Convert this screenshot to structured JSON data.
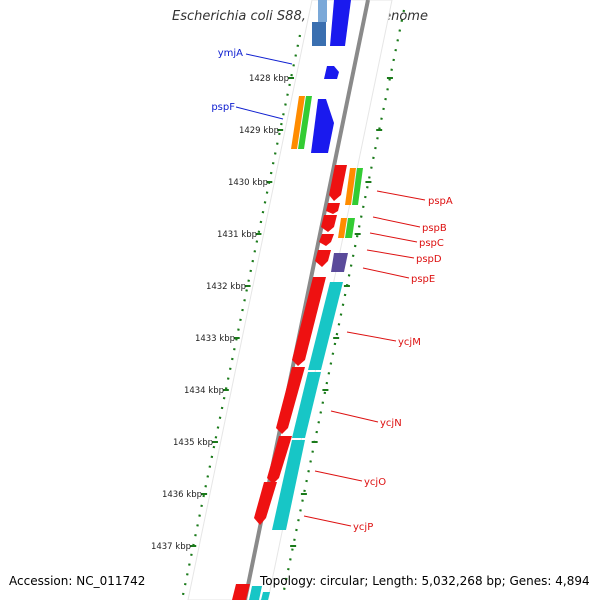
{
  "title": "Escherichia coli S88, complete genome",
  "footer": {
    "accession": "Accession: NC_011742",
    "topology": "Topology: circular; Length: 5,032,268 bp; Genes: 4,894"
  },
  "scale_labels": [
    "1428 kbp",
    "1429 kbp",
    "1430 kbp",
    "1431 kbp",
    "1432 kbp",
    "1433 kbp",
    "1434 kbp",
    "1435 kbp",
    "1436 kbp",
    "1437 kbp"
  ],
  "genes_left": [
    {
      "name": "ymjA",
      "color": "#1020d0"
    },
    {
      "name": "pspF",
      "color": "#1020d0"
    }
  ],
  "genes_right": [
    {
      "name": "pspA",
      "color": "#dd1111"
    },
    {
      "name": "pspB",
      "color": "#dd1111"
    },
    {
      "name": "pspC",
      "color": "#dd1111"
    },
    {
      "name": "pspD",
      "color": "#dd1111"
    },
    {
      "name": "pspE",
      "color": "#dd1111"
    },
    {
      "name": "ycjM",
      "color": "#dd1111"
    },
    {
      "name": "ycjN",
      "color": "#dd1111"
    },
    {
      "name": "ycjO",
      "color": "#dd1111"
    },
    {
      "name": "ycjP",
      "color": "#dd1111"
    }
  ],
  "colors": {
    "forward_cds": "#1a1aee",
    "reverse_cds": "#ee1111",
    "orange_track": "#ff8c00",
    "green_track": "#33cc33",
    "cyan_track": "#17c6c6",
    "purple_track": "#5a4a9a",
    "backbone": "#888888",
    "tick": "#1a7a1a"
  }
}
